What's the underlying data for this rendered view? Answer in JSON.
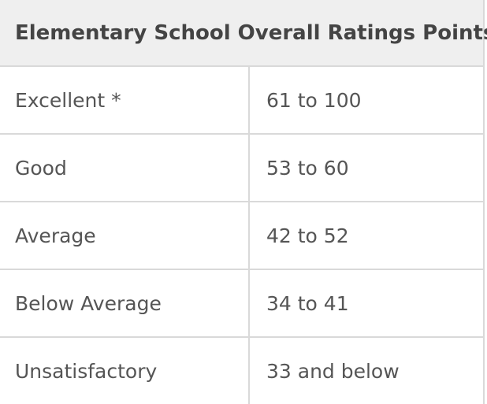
{
  "table": {
    "header": "Elementary School Overall Ratings Points",
    "rows": [
      {
        "rating": "Excellent *",
        "points": "61 to 100"
      },
      {
        "rating": "Good",
        "points": "53 to 60"
      },
      {
        "rating": "Average",
        "points": "42 to 52"
      },
      {
        "rating": "Below Average",
        "points": "34 to 41"
      },
      {
        "rating": "Unsatisfactory",
        "points": "33 and below"
      }
    ]
  }
}
